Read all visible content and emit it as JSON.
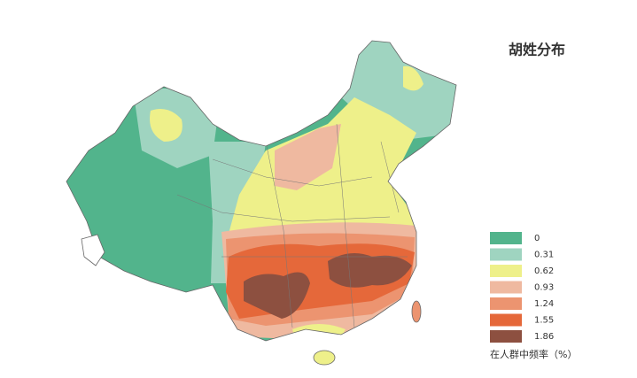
{
  "title": "胡姓分布",
  "legend": {
    "items": [
      {
        "value": 0,
        "color": "#52b48c"
      },
      {
        "value": 0.31,
        "color": "#9fd4c0"
      },
      {
        "value": 0.62,
        "color": "#eef08a"
      },
      {
        "value": 0.93,
        "color": "#efb9a0"
      },
      {
        "value": 1.24,
        "color": "#ec9470"
      },
      {
        "value": 1.55,
        "color": "#e5683a"
      },
      {
        "value": 1.86,
        "color": "#8d5040"
      }
    ],
    "caption": "在人群中频率（%）"
  }
}
